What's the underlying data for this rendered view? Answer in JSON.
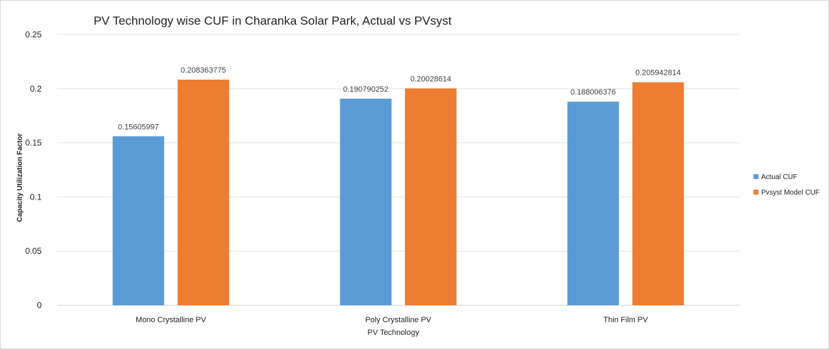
{
  "chart_data": {
    "type": "bar",
    "title": "PV Technology wise CUF in Charanka Solar Park, Actual vs  PVsyst",
    "xlabel": "PV Technology",
    "ylabel": "Capacity Utilization Factor",
    "categories": [
      "Mono Crystalline PV",
      "Poly Crystalline PV",
      "Thin Film PV"
    ],
    "ylim": [
      0,
      0.25
    ],
    "yticks": [
      0,
      0.05,
      0.1,
      0.15,
      0.2,
      0.25
    ],
    "ytick_labels": [
      "0",
      "0.05",
      "0.1",
      "0.15",
      "0.2",
      "0.25"
    ],
    "grid": true,
    "legend_position": "right",
    "series": [
      {
        "name": "Actual CUF",
        "color": "#5b9bd5",
        "values": [
          0.15605997,
          0.190790252,
          0.188006376
        ],
        "labels": [
          "0.15605997",
          "0.190790252",
          "0.188006376"
        ]
      },
      {
        "name": "Pvsyst Model CUF",
        "color": "#ed7d31",
        "values": [
          0.208363775,
          0.20028614,
          0.205942814
        ],
        "labels": [
          "0.208363775",
          "0.20028614",
          "0.205942814"
        ]
      }
    ]
  }
}
